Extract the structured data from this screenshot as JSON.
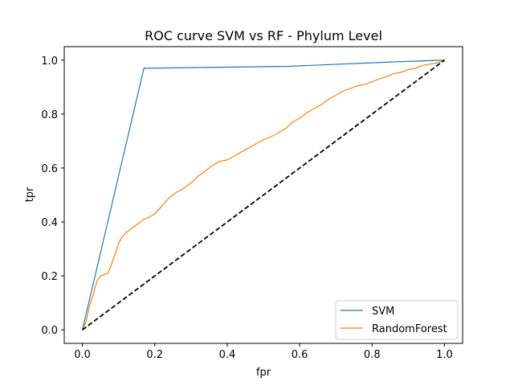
{
  "chart_data": {
    "type": "line",
    "title": "ROC curve SVM vs RF - Phylum Level",
    "xlabel": "fpr",
    "ylabel": "tpr",
    "xlim": [
      -0.05,
      1.05
    ],
    "ylim": [
      -0.05,
      1.05
    ],
    "xticks": [
      "0.0",
      "0.2",
      "0.4",
      "0.6",
      "0.8",
      "1.0"
    ],
    "yticks": [
      "0.0",
      "0.2",
      "0.4",
      "0.6",
      "0.8",
      "1.0"
    ],
    "legend_position": "lower-right",
    "grid": false,
    "series": [
      {
        "name": "SVM",
        "color": "#1f77b4",
        "x": [
          0.0,
          0.17,
          0.57,
          0.85,
          1.0
        ],
        "y": [
          0.0,
          0.97,
          0.977,
          0.993,
          1.0
        ]
      },
      {
        "name": "RandomForest",
        "color": "#ff7f0e",
        "x": [
          0.0,
          0.01,
          0.02,
          0.03,
          0.04,
          0.05,
          0.07,
          0.08,
          0.09,
          0.1,
          0.11,
          0.12,
          0.13,
          0.14,
          0.15,
          0.16,
          0.17,
          0.18,
          0.2,
          0.22,
          0.24,
          0.26,
          0.28,
          0.3,
          0.32,
          0.34,
          0.36,
          0.38,
          0.4,
          0.42,
          0.44,
          0.46,
          0.48,
          0.5,
          0.52,
          0.54,
          0.56,
          0.58,
          0.6,
          0.62,
          0.64,
          0.66,
          0.68,
          0.7,
          0.72,
          0.74,
          0.76,
          0.78,
          0.8,
          0.82,
          0.84,
          0.86,
          0.88,
          0.9,
          0.92,
          0.94,
          0.96,
          0.98,
          1.0
        ],
        "y": [
          0.0,
          0.03,
          0.09,
          0.13,
          0.18,
          0.2,
          0.21,
          0.24,
          0.28,
          0.32,
          0.345,
          0.36,
          0.37,
          0.38,
          0.39,
          0.4,
          0.41,
          0.415,
          0.43,
          0.46,
          0.49,
          0.51,
          0.525,
          0.545,
          0.57,
          0.59,
          0.61,
          0.625,
          0.63,
          0.645,
          0.66,
          0.675,
          0.69,
          0.705,
          0.715,
          0.73,
          0.745,
          0.77,
          0.785,
          0.805,
          0.82,
          0.835,
          0.855,
          0.87,
          0.885,
          0.895,
          0.905,
          0.91,
          0.92,
          0.93,
          0.94,
          0.95,
          0.955,
          0.965,
          0.97,
          0.98,
          0.985,
          0.99,
          1.0
        ]
      },
      {
        "color": "#000000",
        "dashed": true,
        "x": [
          0.0,
          1.0
        ],
        "y": [
          0.0,
          1.0
        ]
      }
    ]
  }
}
